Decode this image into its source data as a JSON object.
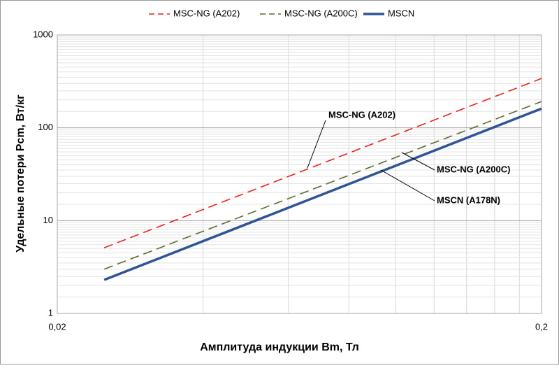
{
  "chart_data": {
    "type": "line",
    "x_label": "Амплитуда индукции Bm, Тл",
    "y_label": "Удельные потери Pcm, Вт/кг",
    "x": [
      0.025,
      0.2
    ],
    "series": [
      {
        "name": "MSC-NG (A202)",
        "color": "#e8231f",
        "dash": true,
        "values": [
          5.1,
          340
        ]
      },
      {
        "name": "MSC-NG (A200C)",
        "color": "#5a6b32",
        "dash": true,
        "values": [
          3.0,
          192
        ]
      },
      {
        "name": "MSCN",
        "color": "#2f5597",
        "dash": false,
        "values": [
          2.3,
          161
        ]
      }
    ],
    "annotations": [
      "MSC-NG (A202)",
      "MSC-NG (A200C)",
      "MSCN (A178N)"
    ],
    "xlim": [
      0.02,
      0.2
    ],
    "ylim": [
      1,
      1000
    ],
    "xticks": [
      {
        "value": 0.02,
        "label": "0,02"
      },
      {
        "value": 0.2,
        "label": "0,2"
      }
    ],
    "yticks": [
      1,
      10,
      100,
      1000
    ],
    "log_x": true,
    "log_y": true,
    "grid": true,
    "legend": "top"
  }
}
